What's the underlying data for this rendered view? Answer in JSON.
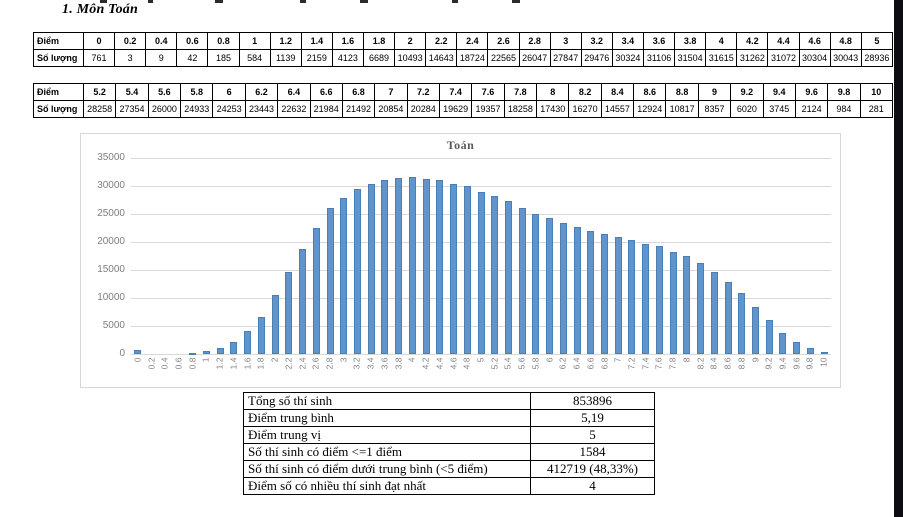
{
  "page": {
    "title": "1.  Môn Toán"
  },
  "score_tables": {
    "row_labels": {
      "score": "Điểm",
      "count": "Số lượng"
    },
    "table1": {
      "scores": [
        "0",
        "0.2",
        "0.4",
        "0.6",
        "0.8",
        "1",
        "1.2",
        "1.4",
        "1.6",
        "1.8",
        "2",
        "2.2",
        "2.4",
        "2.6",
        "2.8",
        "3",
        "3.2",
        "3.4",
        "3.6",
        "3.8",
        "4",
        "4.2",
        "4.4",
        "4.6",
        "4.8",
        "5"
      ],
      "counts": [
        761,
        3,
        9,
        42,
        185,
        584,
        1139,
        2159,
        4123,
        6689,
        10493,
        14643,
        18724,
        22565,
        26047,
        27847,
        29476,
        30324,
        31106,
        31504,
        31615,
        31262,
        31072,
        30304,
        30043,
        28936
      ]
    },
    "table2": {
      "scores": [
        "5.2",
        "5.4",
        "5.6",
        "5.8",
        "6",
        "6.2",
        "6.4",
        "6.6",
        "6.8",
        "7",
        "7.2",
        "7.4",
        "7.6",
        "7.8",
        "8",
        "8.2",
        "8.4",
        "8.6",
        "8.8",
        "9",
        "9.2",
        "9.4",
        "9.6",
        "9.8",
        "10"
      ],
      "counts": [
        28258,
        27354,
        26000,
        24933,
        24253,
        23443,
        22632,
        21984,
        21492,
        20854,
        20284,
        19629,
        19357,
        18258,
        17430,
        16270,
        14557,
        12924,
        10817,
        8357,
        6020,
        3745,
        2124,
        984,
        281
      ]
    }
  },
  "chart_data": {
    "type": "bar",
    "title": "Toán",
    "x": [
      "0",
      "0.2",
      "0.4",
      "0.6",
      "0.8",
      "1",
      "1.2",
      "1.4",
      "1.6",
      "1.8",
      "2",
      "2.2",
      "2.4",
      "2.6",
      "2.8",
      "3",
      "3.2",
      "3.4",
      "3.6",
      "3.8",
      "4",
      "4.2",
      "4.4",
      "4.6",
      "4.8",
      "5",
      "5.2",
      "5.4",
      "5.6",
      "5.8",
      "6",
      "6.2",
      "6.4",
      "6.6",
      "6.8",
      "7",
      "7.2",
      "7.4",
      "7.6",
      "7.8",
      "8",
      "8.2",
      "8.4",
      "8.6",
      "8.8",
      "9",
      "9.2",
      "9.4",
      "9.6",
      "9.8",
      "10"
    ],
    "values": [
      761,
      3,
      9,
      42,
      185,
      584,
      1139,
      2159,
      4123,
      6689,
      10493,
      14643,
      18724,
      22565,
      26047,
      27847,
      29476,
      30324,
      31106,
      31504,
      31615,
      31262,
      31072,
      30304,
      30043,
      28936,
      28258,
      27354,
      26000,
      24933,
      24253,
      23443,
      22632,
      21984,
      21492,
      20854,
      20284,
      19629,
      19357,
      18258,
      17430,
      16270,
      14557,
      12924,
      10817,
      8357,
      6020,
      3745,
      2124,
      984,
      281
    ],
    "xlabel": "",
    "ylabel": "",
    "ylim": [
      0,
      35000
    ],
    "yticks": [
      35000,
      30000,
      25000,
      20000,
      15000,
      10000,
      5000,
      0
    ],
    "grid": "horizontal",
    "legend": "none",
    "bar_color": "#5f94cc"
  },
  "summary_table": {
    "rows": [
      {
        "label": "Tổng số thí sinh",
        "value": "853896"
      },
      {
        "label": "Điểm trung bình",
        "value": "5,19"
      },
      {
        "label": "Điểm trung vị",
        "value": "5"
      },
      {
        "label": "Số thí sinh có điểm <=1 điểm",
        "value": "1584"
      },
      {
        "label": "Số thí sinh có điểm dưới trung bình (<5 điểm)",
        "value": "412719 (48,33%)"
      },
      {
        "label": "Điểm số có nhiều thí sinh đạt nhất",
        "value": "4"
      }
    ]
  }
}
